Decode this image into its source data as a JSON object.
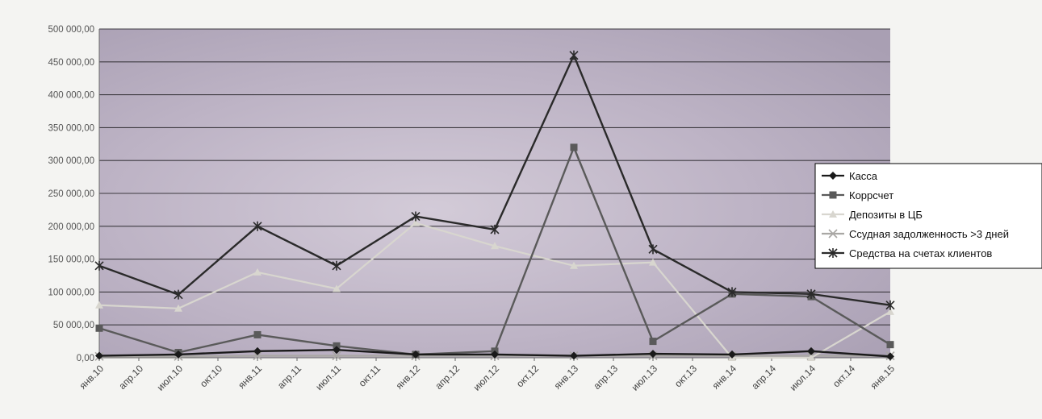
{
  "chart_data": {
    "type": "line",
    "title": "",
    "xlabel": "",
    "ylabel": "",
    "ylim": [
      0,
      500000
    ],
    "grid": true,
    "legend_position": "right",
    "y_ticks": [
      "0,00",
      "50 000,00",
      "100 000,00",
      "150 000,00",
      "200 000,00",
      "250 000,00",
      "300 000,00",
      "350 000,00",
      "400 000,00",
      "450 000,00",
      "500 000,00"
    ],
    "y_tick_values": [
      0,
      50000,
      100000,
      150000,
      200000,
      250000,
      300000,
      350000,
      400000,
      450000,
      500000
    ],
    "x_ticks": [
      "янв.10",
      "апр.10",
      "июл.10",
      "окт.10",
      "янв.11",
      "апр.11",
      "июл.11",
      "окт.11",
      "янв.12",
      "апр.12",
      "июл.12",
      "окт.12",
      "янв.13",
      "апр.13",
      "июл.13",
      "окт.13",
      "янв.14",
      "апр.14",
      "июл.14",
      "окт.14",
      "янв.15"
    ],
    "categories": [
      "янв.10",
      "июл.10",
      "янв.11",
      "июл.11",
      "янв.12",
      "июл.12",
      "янв.13",
      "июл.13",
      "янв.14",
      "июл.14",
      "янв.15"
    ],
    "series": [
      {
        "name": "Касса",
        "color": "#1a1a1a",
        "marker": "diamond",
        "values": [
          3000,
          5000,
          10000,
          12000,
          5000,
          5000,
          3000,
          6000,
          5000,
          10000,
          2000
        ]
      },
      {
        "name": "Коррсчет",
        "color": "#5a5a5a",
        "marker": "square",
        "values": [
          45000,
          8000,
          35000,
          18000,
          5000,
          10000,
          320000,
          25000,
          97000,
          93000,
          20000
        ]
      },
      {
        "name": "Депозиты в ЦБ",
        "color": "#d8d6cf",
        "marker": "triangle",
        "values": [
          80000,
          75000,
          130000,
          105000,
          205000,
          170000,
          140000,
          145000,
          0,
          0,
          70000
        ]
      },
      {
        "name": "Ссудная задолженность >3 дней",
        "color": "#a9a7a4",
        "marker": "x",
        "values": [
          2000,
          2000,
          3000,
          3000,
          3000,
          3000,
          3000,
          3000,
          3000,
          3000,
          3000
        ]
      },
      {
        "name": "Средства на счетах клиентов",
        "color": "#2a2a2a",
        "marker": "asterisk",
        "values": [
          140000,
          96000,
          200000,
          140000,
          215000,
          195000,
          460000,
          165000,
          100000,
          97000,
          80000
        ]
      }
    ]
  }
}
